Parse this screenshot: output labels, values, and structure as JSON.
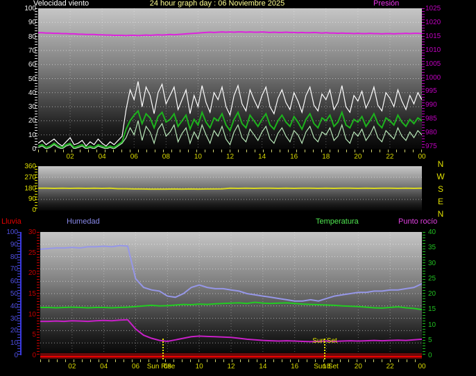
{
  "header": {
    "wind_label": "Velocidad viento",
    "title": "24 hour graph day : 06 Noviembre 2025",
    "pressure_label": "Presión"
  },
  "legend": {
    "rain": "Lluvia",
    "humidity": "Humedad",
    "temperature": "Temperatura",
    "dew_point": "Punto rocío"
  },
  "compass": [
    "N",
    "W",
    "S",
    "E",
    "N"
  ],
  "sun": {
    "rise_label": "Sun Rise",
    "set_label": "Sun Set",
    "rise_hour": 7.7,
    "set_hour": 17.9
  },
  "colors": {
    "title": "#ffff90",
    "wind_gust": "#ffffff",
    "wind_avg": "#1db31d",
    "wind_low": "#b9e8b9",
    "pressure": "#dd22dd",
    "direction": "#d8d820",
    "humidity": "#9697e8",
    "temperature": "#22cc22",
    "dew_point": "#c820c8",
    "rain": "#e80000",
    "x_labels": "#d8d800"
  },
  "axes": {
    "wind_left": {
      "min": 0,
      "max": 100,
      "ticks": [
        100,
        90,
        80,
        70,
        60,
        50,
        40,
        30,
        20,
        10,
        0
      ]
    },
    "pressure_right": {
      "min": 975,
      "max": 1025,
      "ticks": [
        1025,
        1020,
        1015,
        1010,
        1005,
        1000,
        995,
        990,
        985,
        980,
        975
      ]
    },
    "direction_left": {
      "min": 0,
      "max": 360,
      "ticks": [
        360,
        270,
        180,
        90,
        0
      ]
    },
    "humidity_left": {
      "min": 0,
      "max": 100,
      "ticks": [
        100,
        90,
        80,
        70,
        60,
        50,
        40,
        30,
        20,
        10,
        0
      ]
    },
    "rain_left": {
      "min": 0,
      "max": 30,
      "ticks": [
        30,
        25,
        20,
        15,
        10,
        5,
        0
      ]
    },
    "temp_right": {
      "min": 0,
      "max": 40,
      "ticks": [
        40,
        35,
        30,
        25,
        20,
        15,
        10,
        5,
        0
      ]
    },
    "x_hours": [
      "02",
      "04",
      "06",
      "08",
      "10",
      "12",
      "14",
      "16",
      "18",
      "20",
      "22",
      "00"
    ]
  },
  "chart_data": [
    {
      "type": "line",
      "panel": "wind",
      "x_hours_span": [
        0,
        24
      ],
      "series": [
        {
          "name": "wind_low",
          "color": "#b9e8b9",
          "width": 1.2,
          "axis": [
            0,
            100
          ],
          "values": [
            1,
            2,
            0,
            1,
            3,
            1,
            0,
            2,
            3,
            0,
            1,
            2,
            0,
            1,
            0,
            2,
            1,
            0,
            1,
            0,
            2,
            4,
            8,
            15,
            10,
            20,
            6,
            16,
            12,
            4,
            14,
            18,
            9,
            12,
            17,
            5,
            11,
            15,
            4,
            12,
            7,
            17,
            10,
            4,
            13,
            9,
            16,
            7,
            3,
            12,
            17,
            8,
            5,
            14,
            10,
            6,
            12,
            16,
            7,
            4,
            11,
            15,
            9,
            5,
            13,
            10,
            4,
            12,
            16,
            8,
            5,
            12,
            10,
            15,
            6,
            9,
            17,
            7,
            4,
            12,
            9,
            14,
            6,
            10,
            16,
            8,
            5,
            13,
            10,
            7,
            15,
            9,
            6,
            12,
            8,
            13,
            10
          ]
        },
        {
          "name": "wind_gust",
          "color": "#ffffff",
          "width": 1.2,
          "axis": [
            0,
            100
          ],
          "values": [
            4,
            6,
            3,
            5,
            7,
            4,
            2,
            5,
            8,
            3,
            4,
            6,
            2,
            5,
            3,
            7,
            4,
            2,
            5,
            3,
            6,
            9,
            28,
            42,
            35,
            48,
            30,
            44,
            38,
            25,
            40,
            46,
            32,
            38,
            44,
            28,
            35,
            42,
            25,
            38,
            30,
            45,
            33,
            26,
            40,
            35,
            44,
            30,
            24,
            38,
            45,
            32,
            27,
            42,
            35,
            29,
            38,
            44,
            30,
            25,
            36,
            42,
            33,
            28,
            40,
            34,
            26,
            38,
            44,
            31,
            27,
            39,
            35,
            42,
            28,
            33,
            45,
            30,
            26,
            38,
            34,
            41,
            29,
            35,
            44,
            31,
            27,
            40,
            36,
            30,
            42,
            34,
            28,
            38,
            32,
            40,
            35
          ]
        },
        {
          "name": "wind_avg",
          "color": "#1db31d",
          "width": 2,
          "axis": [
            0,
            100
          ],
          "values": [
            2,
            3,
            1,
            2,
            4,
            2,
            1,
            3,
            4,
            1,
            2,
            3,
            1,
            2,
            1,
            3,
            2,
            1,
            2,
            1,
            3,
            5,
            14,
            20,
            24,
            27,
            18,
            25,
            22,
            15,
            23,
            26,
            19,
            21,
            25,
            16,
            20,
            24,
            14,
            21,
            17,
            26,
            19,
            15,
            22,
            20,
            25,
            17,
            13,
            21,
            26,
            18,
            15,
            24,
            20,
            16,
            21,
            25,
            17,
            14,
            20,
            24,
            19,
            16,
            23,
            19,
            14,
            21,
            25,
            18,
            15,
            22,
            20,
            24,
            16,
            19,
            26,
            17,
            15,
            21,
            19,
            23,
            16,
            20,
            25,
            18,
            15,
            22,
            20,
            17,
            24,
            19,
            16,
            21,
            18,
            22,
            20
          ]
        },
        {
          "name": "pressure",
          "color": "#dd22dd",
          "width": 2,
          "axis": [
            975,
            1025
          ],
          "values": [
            1016.3,
            1016.3,
            1016.2,
            1016.2,
            1016.1,
            1016.1,
            1016.0,
            1016.0,
            1015.9,
            1015.9,
            1015.8,
            1015.8,
            1015.7,
            1015.7,
            1015.7,
            1015.6,
            1015.6,
            1015.5,
            1015.5,
            1015.4,
            1015.4,
            1015.4,
            1015.3,
            1015.4,
            1015.4,
            1015.3,
            1015.4,
            1015.5,
            1015.4,
            1015.5,
            1015.6,
            1015.5,
            1015.6,
            1015.7,
            1015.6,
            1015.7,
            1015.8,
            1015.9,
            1016.0,
            1016.1,
            1016.2,
            1016.3,
            1016.4,
            1016.5,
            1016.4,
            1016.5,
            1016.6,
            1016.5,
            1016.6,
            1016.5,
            1016.6,
            1016.6,
            1016.5,
            1016.6,
            1016.5,
            1016.5,
            1016.6,
            1016.5,
            1016.4,
            1016.5,
            1016.4,
            1016.4,
            1016.5,
            1016.4,
            1016.4,
            1016.3,
            1016.4,
            1016.3,
            1016.3,
            1016.4,
            1016.3,
            1016.2,
            1016.3,
            1016.2,
            1016.2,
            1016.1,
            1016.2,
            1016.1,
            1016.1,
            1016.0,
            1016.1,
            1016.0,
            1016.0,
            1016.1,
            1016.0,
            1016.0,
            1015.9,
            1016.0,
            1016.0,
            1015.9,
            1016.0,
            1016.0,
            1016.1,
            1016.0,
            1016.1,
            1016.1,
            1016.0
          ]
        }
      ]
    },
    {
      "type": "line",
      "panel": "direction",
      "x_hours_span": [
        0,
        24
      ],
      "series": [
        {
          "name": "wind_direction",
          "color": "#d8d820",
          "width": 2,
          "axis": [
            0,
            360
          ],
          "values": [
            181,
            181,
            180,
            181,
            180,
            181,
            180,
            181,
            180,
            181,
            177,
            177,
            175,
            175,
            174,
            174,
            174,
            175,
            174,
            175,
            174,
            175,
            175,
            176,
            181,
            180,
            181,
            180,
            181,
            181,
            180,
            181,
            180,
            181,
            181,
            180,
            181,
            180,
            181,
            181,
            180,
            181,
            180,
            181,
            181,
            180,
            181,
            180,
            181
          ]
        }
      ]
    },
    {
      "type": "line",
      "panel": "climate",
      "x_hours_span": [
        0,
        24
      ],
      "series": [
        {
          "name": "humidity",
          "color": "#9697e8",
          "width": 2,
          "axis": [
            0,
            100
          ],
          "values": [
            86,
            86.5,
            87,
            87,
            87.5,
            87,
            88,
            88,
            88.5,
            88,
            89,
            88.5,
            62,
            55,
            53,
            52,
            48,
            47,
            50,
            55,
            57,
            55,
            54,
            54,
            53,
            52,
            50,
            49,
            48,
            47,
            46,
            45,
            44,
            44,
            45,
            44,
            46,
            48,
            49,
            50,
            51,
            51,
            52,
            52,
            53,
            53,
            54,
            55,
            58
          ]
        },
        {
          "name": "temperature",
          "color": "#22cc22",
          "width": 2,
          "axis": [
            0,
            40
          ],
          "values": [
            15.5,
            15.5,
            15.4,
            15.5,
            15.6,
            15.5,
            15.4,
            15.5,
            15.5,
            15.4,
            15.5,
            15.6,
            15.8,
            16.0,
            16.2,
            16.0,
            16.1,
            16.3,
            16.5,
            16.4,
            16.6,
            16.5,
            16.7,
            16.8,
            16.9,
            17.0,
            16.8,
            17.2,
            16.9,
            16.8,
            16.9,
            17.0,
            16.8,
            16.6,
            16.5,
            16.4,
            16.3,
            16.2,
            16.0,
            15.9,
            15.8,
            15.6,
            15.4,
            15.3,
            15.5,
            15.7,
            15.4,
            15.2,
            14.8
          ]
        },
        {
          "name": "dew_point",
          "color": "#c820c8",
          "width": 2,
          "axis": [
            0,
            40
          ],
          "values": [
            11,
            11,
            11.1,
            11,
            11.2,
            11.1,
            11,
            11.2,
            11.3,
            11.2,
            11.4,
            11.5,
            8.5,
            6.5,
            5.5,
            4.8,
            4.5,
            5,
            5.5,
            6,
            6.2,
            6.1,
            6,
            5.9,
            5.8,
            5.5,
            5.2,
            5,
            4.8,
            4.7,
            4.6,
            4.7,
            4.6,
            4.5,
            4.4,
            4.5,
            4.6,
            4.5,
            4.6,
            4.7,
            4.6,
            4.7,
            4.8,
            4.7,
            4.8,
            4.9,
            4.8,
            5,
            5.2
          ]
        },
        {
          "name": "rain",
          "color": "#e80000",
          "width": 1,
          "axis": [
            0,
            30
          ],
          "values": [
            0,
            0,
            0,
            0,
            0,
            0,
            0,
            0,
            0,
            0,
            0,
            0,
            0,
            0,
            0,
            0,
            0,
            0,
            0,
            0,
            0,
            0,
            0,
            0,
            0,
            0,
            0,
            0,
            0,
            0,
            0,
            0,
            0,
            0,
            0,
            0,
            0,
            0,
            0,
            0,
            0,
            0,
            0,
            0,
            0,
            0,
            0,
            0,
            0
          ]
        }
      ]
    }
  ]
}
